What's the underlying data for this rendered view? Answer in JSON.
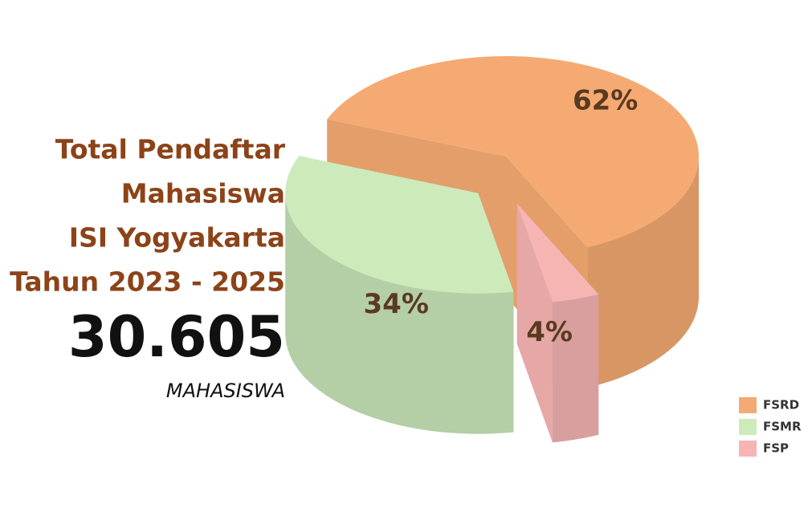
{
  "chart_data": {
    "type": "pie",
    "title_lines": [
      "Total Pendaftar",
      "Mahasiswa",
      "ISI Yogyakarta",
      "Tahun 2023 - 2025"
    ],
    "total": "30.605",
    "total_unit": "MAHASISWA",
    "categories": [
      "FSRD",
      "FSMR",
      "FSP"
    ],
    "values": [
      62,
      34,
      4
    ],
    "value_labels": [
      "62%",
      "34%",
      "4%"
    ],
    "colors": [
      "#f4aa72",
      "#cdeabb",
      "#f6b5b3"
    ],
    "legend": "bottom-right"
  }
}
